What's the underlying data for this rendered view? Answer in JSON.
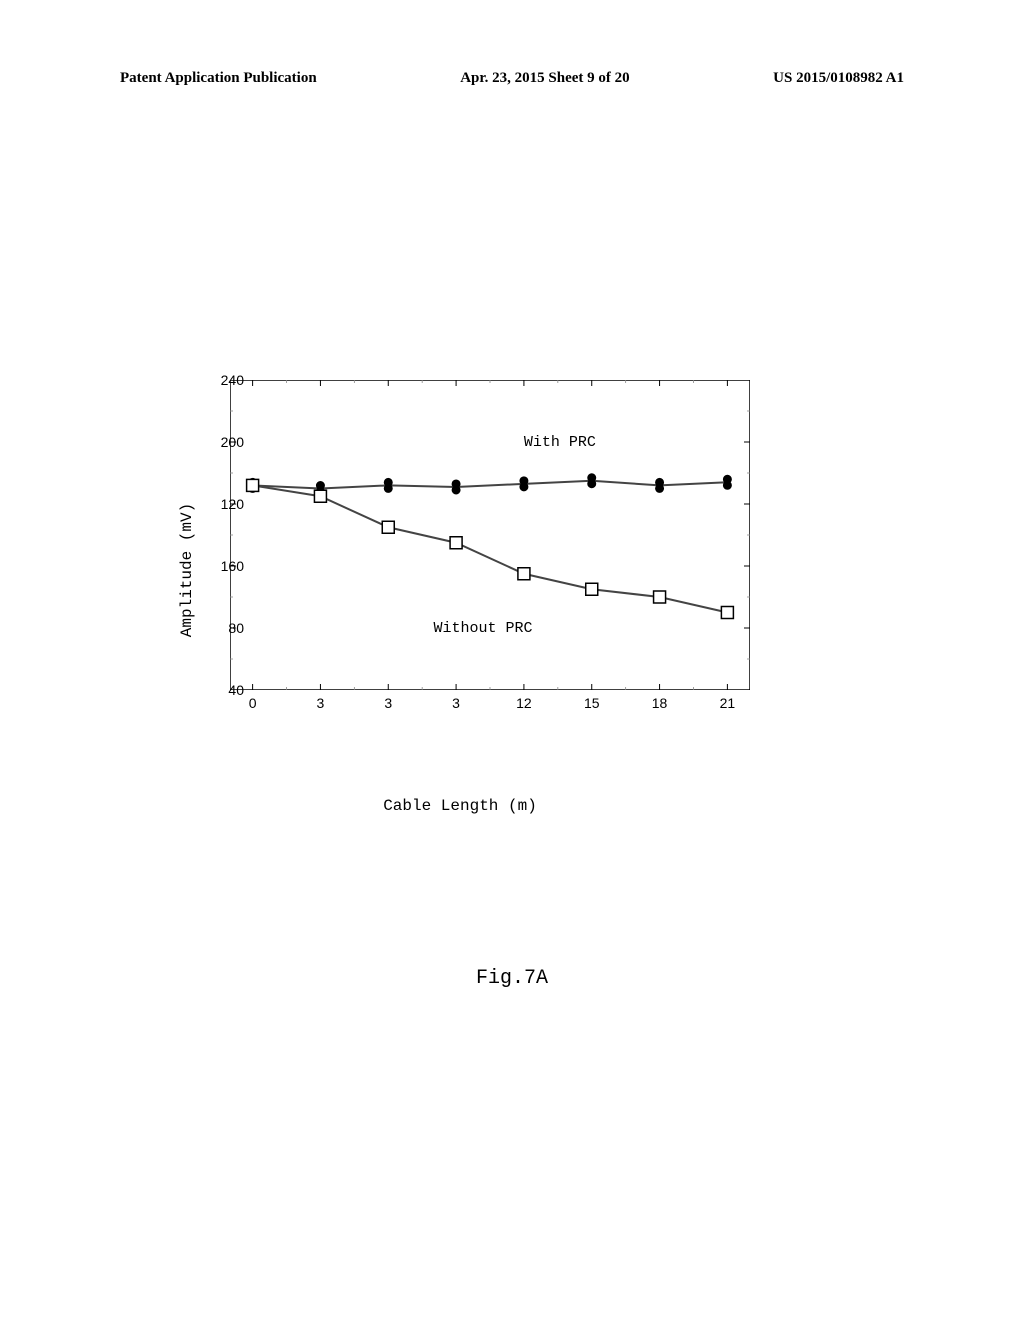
{
  "header": {
    "left": "Patent Application Publication",
    "center": "Apr. 23, 2015  Sheet 9 of 20",
    "right": "US 2015/0108982 A1"
  },
  "chart": {
    "type": "line",
    "ylabel": "Amplitude (mV)",
    "xlabel": "Cable Length (m)",
    "ylim": [
      40,
      240
    ],
    "xlim": [
      -1,
      22
    ],
    "ytick_values": [
      40,
      80,
      120,
      160,
      200,
      240
    ],
    "ytick_labels": [
      "40",
      "80",
      "160",
      "120",
      "200",
      "240"
    ],
    "xtick_values": [
      0,
      3,
      6,
      9,
      12,
      15,
      18,
      21
    ],
    "xtick_labels": [
      "0",
      "3",
      "3",
      "3",
      "12",
      "15",
      "18",
      "21"
    ],
    "background_color": "#ffffff",
    "border_color": "#000000",
    "tick_color": "#888888",
    "label_fontsize": 16,
    "tick_fontsize": 14,
    "series": [
      {
        "name": "With PRC",
        "label_x": 12,
        "label_y": 205,
        "marker": "circle-filled",
        "color": "#000000",
        "line_color": "#444444",
        "line_width": 2,
        "marker_size": 6,
        "x": [
          0,
          3,
          6,
          9,
          12,
          15,
          18,
          21
        ],
        "y": [
          172,
          170,
          172,
          171,
          173,
          175,
          172,
          174
        ]
      },
      {
        "name": "Without PRC",
        "label_x": 8,
        "label_y": 85,
        "marker": "square-open",
        "color": "#000000",
        "line_color": "#444444",
        "line_width": 2,
        "marker_size": 6,
        "x": [
          0,
          3,
          6,
          9,
          12,
          15,
          18,
          21
        ],
        "y": [
          172,
          165,
          145,
          135,
          115,
          105,
          100,
          90
        ]
      }
    ]
  },
  "caption": "Fig.7A"
}
